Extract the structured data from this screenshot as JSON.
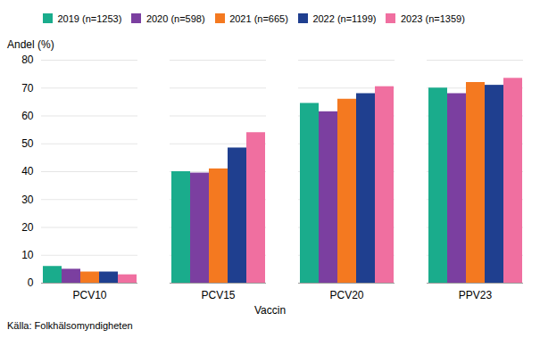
{
  "chart_data": {
    "type": "bar",
    "categories": [
      "PCV10",
      "PCV15",
      "PCV20",
      "PPV23"
    ],
    "series": [
      {
        "name": "2019 (n=1253)",
        "color": "#1aac8c",
        "values": [
          6,
          40,
          64.5,
          70
        ]
      },
      {
        "name": "2020 (n=598)",
        "color": "#7b3fa0",
        "values": [
          5,
          39.5,
          61.5,
          68
        ]
      },
      {
        "name": "2021 (n=665)",
        "color": "#f47920",
        "values": [
          4,
          41,
          66,
          72
        ]
      },
      {
        "name": "2022 (n=1199)",
        "color": "#1f3f8f",
        "values": [
          4,
          48.5,
          68,
          71
        ]
      },
      {
        "name": "2023 (n=1359)",
        "color": "#f06fa0",
        "values": [
          3,
          54,
          70.5,
          73.5
        ]
      }
    ],
    "xlabel": "Vaccin",
    "ylabel": "Andel (%)",
    "ylim": [
      0,
      80
    ],
    "yticks": [
      0,
      10,
      20,
      30,
      40,
      50,
      60,
      70,
      80
    ],
    "grid": true,
    "legend": "top",
    "annotations": [
      "Källa: Folkhälsomyndigheten"
    ]
  }
}
